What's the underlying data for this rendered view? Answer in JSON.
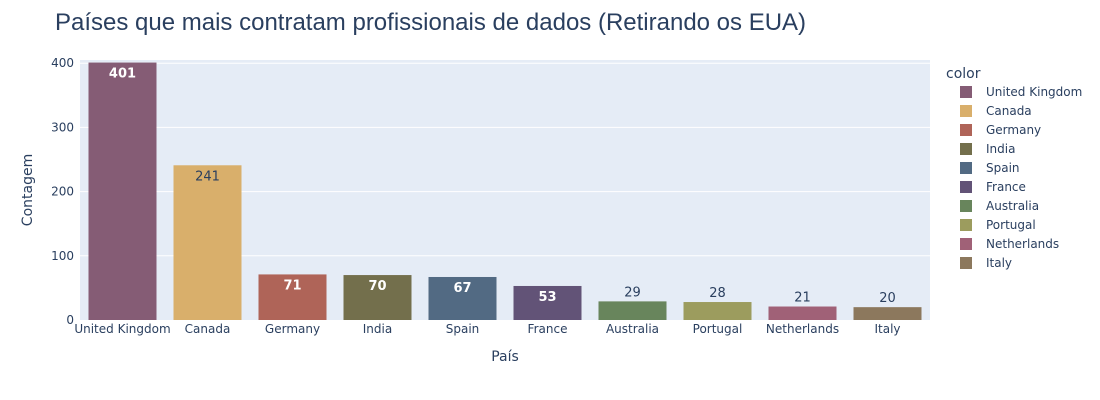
{
  "chart_data": {
    "type": "bar",
    "title": "Países que mais contratam profissionais de dados (Retirando os EUA)",
    "xlabel": "País",
    "ylabel": "Contagem",
    "ylim": [
      0,
      405
    ],
    "yticks": [
      0,
      100,
      200,
      300,
      400
    ],
    "grid": true,
    "legend_title": "color",
    "legend_position": "right",
    "categories": [
      "United Kingdom",
      "Canada",
      "Germany",
      "India",
      "Spain",
      "France",
      "Australia",
      "Portugal",
      "Netherlands",
      "Italy"
    ],
    "values": [
      401,
      241,
      71,
      70,
      67,
      53,
      29,
      28,
      21,
      20
    ],
    "colors": [
      "#855C75",
      "#D9AF6B",
      "#AF6458",
      "#736F4C",
      "#526A83",
      "#625377",
      "#68855C",
      "#9C9C5E",
      "#A06177",
      "#8C785D"
    ],
    "label_colors": [
      "#ffffff",
      "#2a3f5f",
      "#ffffff",
      "#ffffff",
      "#ffffff",
      "#ffffff",
      "#2a3f5f",
      "#2a3f5f",
      "#2a3f5f",
      "#2a3f5f"
    ],
    "label_inside": [
      true,
      true,
      true,
      true,
      true,
      true,
      false,
      false,
      false,
      false
    ],
    "plot_background": "#E5ECF6",
    "gridline_color": "#ffffff"
  }
}
